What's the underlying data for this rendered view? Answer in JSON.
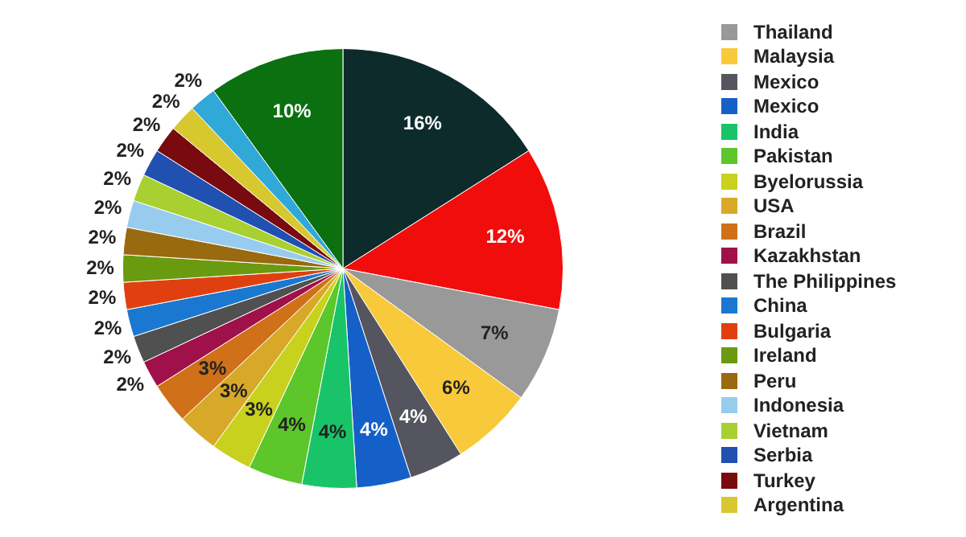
{
  "chart_data": {
    "type": "pie",
    "categories": [
      null,
      null,
      "Thailand",
      "Malaysia",
      "Mexico",
      "Mexico",
      "India",
      "Pakistan",
      "Byelorussia",
      "USA",
      "Brazil",
      "Kazakhstan",
      "The Philippines",
      "China",
      "Bulgaria",
      "Ireland",
      "Peru",
      "Indonesia",
      "Vietnam",
      "Serbia",
      "Turkey",
      "Argentina",
      null,
      null
    ],
    "values": [
      16,
      12,
      7,
      6,
      4,
      4,
      4,
      4,
      3,
      3,
      3,
      2,
      2,
      2,
      2,
      2,
      2,
      2,
      2,
      2,
      2,
      2,
      2,
      10
    ],
    "value_labels": [
      "16%",
      "12%",
      "7%",
      "6%",
      "4%",
      "4%",
      "4%",
      "4%",
      "3%",
      "3%",
      "3%",
      "2%",
      "2%",
      "2%",
      "2%",
      "2%",
      "2%",
      "2%",
      "2%",
      "2%",
      "2%",
      "2%",
      "2%",
      "10%"
    ],
    "colors": [
      "#0d2b2b",
      "#f20d0d",
      "#999999",
      "#f8c93a",
      "#555560",
      "#1560c8",
      "#19c468",
      "#5cc62a",
      "#c8d21e",
      "#d8a828",
      "#d07018",
      "#a0104a",
      "#505050",
      "#1a78d0",
      "#e04010",
      "#6a9a10",
      "#9a6a10",
      "#98ccee",
      "#a8d030",
      "#2050b0",
      "#780a10",
      "#d8c830",
      "#30a8d8",
      "#0a7010"
    ],
    "legend": "right"
  }
}
